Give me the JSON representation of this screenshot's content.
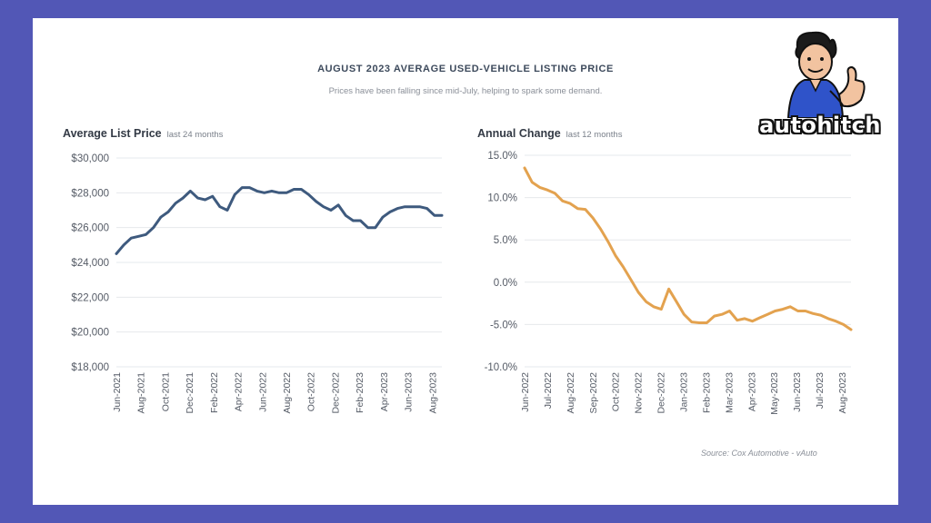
{
  "header": {
    "title": "AUGUST 2023 AVERAGE USED-VEHICLE LISTING PRICE",
    "subtitle": "Prices have been falling since mid-July, helping to spark some demand."
  },
  "logo": {
    "text": "autohitch",
    "icon": "mascot-thumbs-up-icon"
  },
  "source": "Source: Cox Automotive - vAuto",
  "colors": {
    "left_line": "#3e5a7e",
    "right_line": "#e3a24f",
    "frame": "#5257b6"
  },
  "chart_data": [
    {
      "type": "line",
      "heading": "Average List Price",
      "heading_sub": "last 24 months",
      "ylim": [
        18000,
        30000
      ],
      "yticks": [
        "$30,000",
        "$28,000",
        "$26,000",
        "$24,000",
        "$22,000",
        "$20,000",
        "$18,000"
      ],
      "xticks": [
        "Jun-2021",
        "Aug-2021",
        "Oct-2021",
        "Dec-2021",
        "Feb-2022",
        "Apr-2022",
        "Jun-2022",
        "Aug-2022",
        "Oct-2022",
        "Dec-2022",
        "Feb-2023",
        "Apr-2023",
        "Jun-2023",
        "Aug-2023"
      ],
      "grid": true,
      "series": [
        {
          "values": [
            24500,
            25000,
            25400,
            25500,
            25600,
            26000,
            26600,
            26900,
            27400,
            27700,
            28100,
            27700,
            27600,
            27800,
            27200,
            27000,
            27900,
            28300,
            28300,
            28100,
            28000,
            28100,
            28000,
            28000,
            28200,
            28200,
            27900,
            27500,
            27200,
            27000,
            27300,
            26700,
            26400,
            26400,
            26000,
            26000,
            26600,
            26900,
            27100,
            27200,
            27200,
            27200,
            27100,
            26700,
            26700
          ]
        }
      ]
    },
    {
      "type": "line",
      "heading": "Annual Change",
      "heading_sub": "last 12 months",
      "ylim": [
        -10,
        15
      ],
      "yticks": [
        "15.0%",
        "10.0%",
        "5.0%",
        "0.0%",
        "-5.0%",
        "-10.0%"
      ],
      "xticks": [
        "Jun-2022",
        "Jul-2022",
        "Aug-2022",
        "Sep-2022",
        "Oct-2022",
        "Nov-2022",
        "Dec-2022",
        "Jan-2023",
        "Feb-2023",
        "Mar-2023",
        "Apr-2023",
        "May-2023",
        "Jun-2023",
        "Jul-2023",
        "Aug-2023"
      ],
      "grid": true,
      "series": [
        {
          "values": [
            13.5,
            11.8,
            11.2,
            10.9,
            10.5,
            9.6,
            9.3,
            8.7,
            8.6,
            7.6,
            6.3,
            4.8,
            3.1,
            1.8,
            0.3,
            -1.2,
            -2.3,
            -2.9,
            -3.2,
            -0.8,
            -2.3,
            -3.8,
            -4.7,
            -4.8,
            -4.8,
            -4.0,
            -3.8,
            -3.4,
            -4.5,
            -4.3,
            -4.6,
            -4.2,
            -3.8,
            -3.4,
            -3.2,
            -2.9,
            -3.4,
            -3.4,
            -3.7,
            -3.9,
            -4.3,
            -4.6,
            -5.0,
            -5.6
          ]
        }
      ]
    }
  ]
}
